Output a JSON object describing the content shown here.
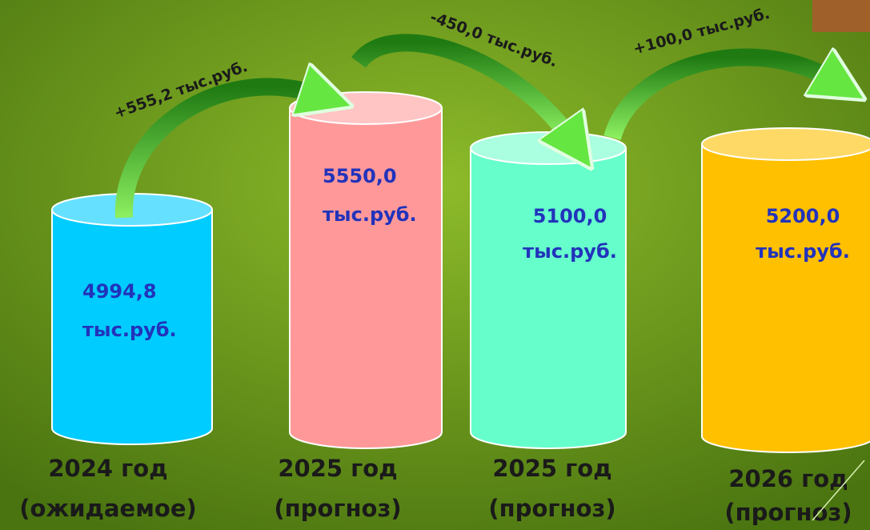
{
  "columns": [
    {
      "value": [
        "4994,8",
        "тыс.руб."
      ],
      "caption": [
        "2024 год",
        "(ожидаемое)"
      ]
    },
    {
      "value": [
        "5550,0",
        "тыс.руб."
      ],
      "caption": [
        "2025 год",
        "(прогноз)"
      ]
    },
    {
      "value": [
        "5100,0",
        "тыс.руб."
      ],
      "caption": [
        "2025 год",
        "(прогноз)"
      ]
    },
    {
      "value": [
        "5200,0",
        "тыс.руб."
      ],
      "caption": [
        "2026 год",
        "(прогноз)"
      ]
    }
  ],
  "changes": [
    "+555,2 тыс.руб.",
    "-450,0 тыс.руб.",
    "+100,0 тыс.руб."
  ]
}
